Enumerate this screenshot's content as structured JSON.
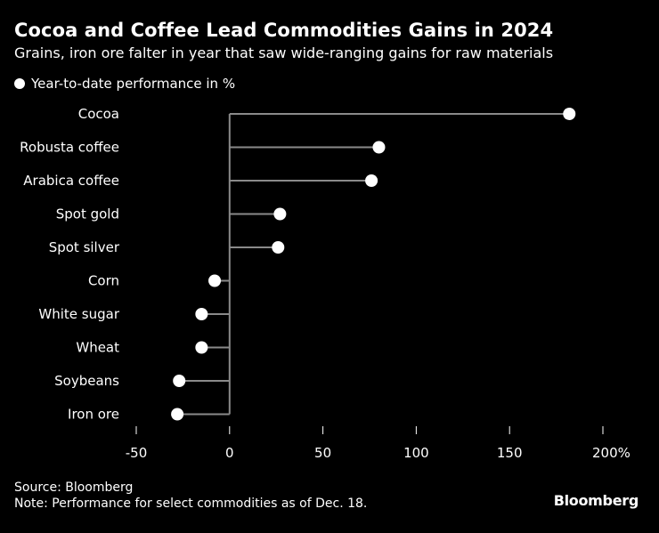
{
  "title": "Cocoa and Coffee Lead Commodities Gains in 2024",
  "subtitle": "Grains, iron ore falter in year that saw wide-ranging gains for raw materials",
  "legend": {
    "label": "Year-to-date performance in %"
  },
  "chart_data": {
    "type": "lollipop",
    "orientation": "horizontal",
    "title": "Cocoa and Coffee Lead Commodities Gains in 2024",
    "subtitle": "Grains, iron ore falter in year that saw wide-ranging gains for raw materials",
    "series_name": "Year-to-date performance in %",
    "categories": [
      "Cocoa",
      "Robusta coffee",
      "Arabica coffee",
      "Spot gold",
      "Spot silver",
      "Corn",
      "White sugar",
      "Wheat",
      "Soybeans",
      "Iron ore"
    ],
    "values": [
      182,
      80,
      76,
      27,
      26,
      -8,
      -15,
      -15,
      -27,
      -28
    ],
    "x_ticks": [
      -50,
      0,
      50,
      100,
      150,
      200
    ],
    "x_tick_labels": [
      "-50",
      "0",
      "50",
      "100",
      "150",
      "200%"
    ],
    "xlim": [
      -50,
      200
    ],
    "grid": false,
    "legend_position": "top-left"
  },
  "footer": {
    "source": "Source: Bloomberg",
    "note": "Note: Performance for select commodities as of Dec. 18.",
    "brand": "Bloomberg"
  },
  "colors": {
    "background": "#000000",
    "text": "#ffffff",
    "stem": "#8a8a8a",
    "marker": "#ffffff"
  }
}
